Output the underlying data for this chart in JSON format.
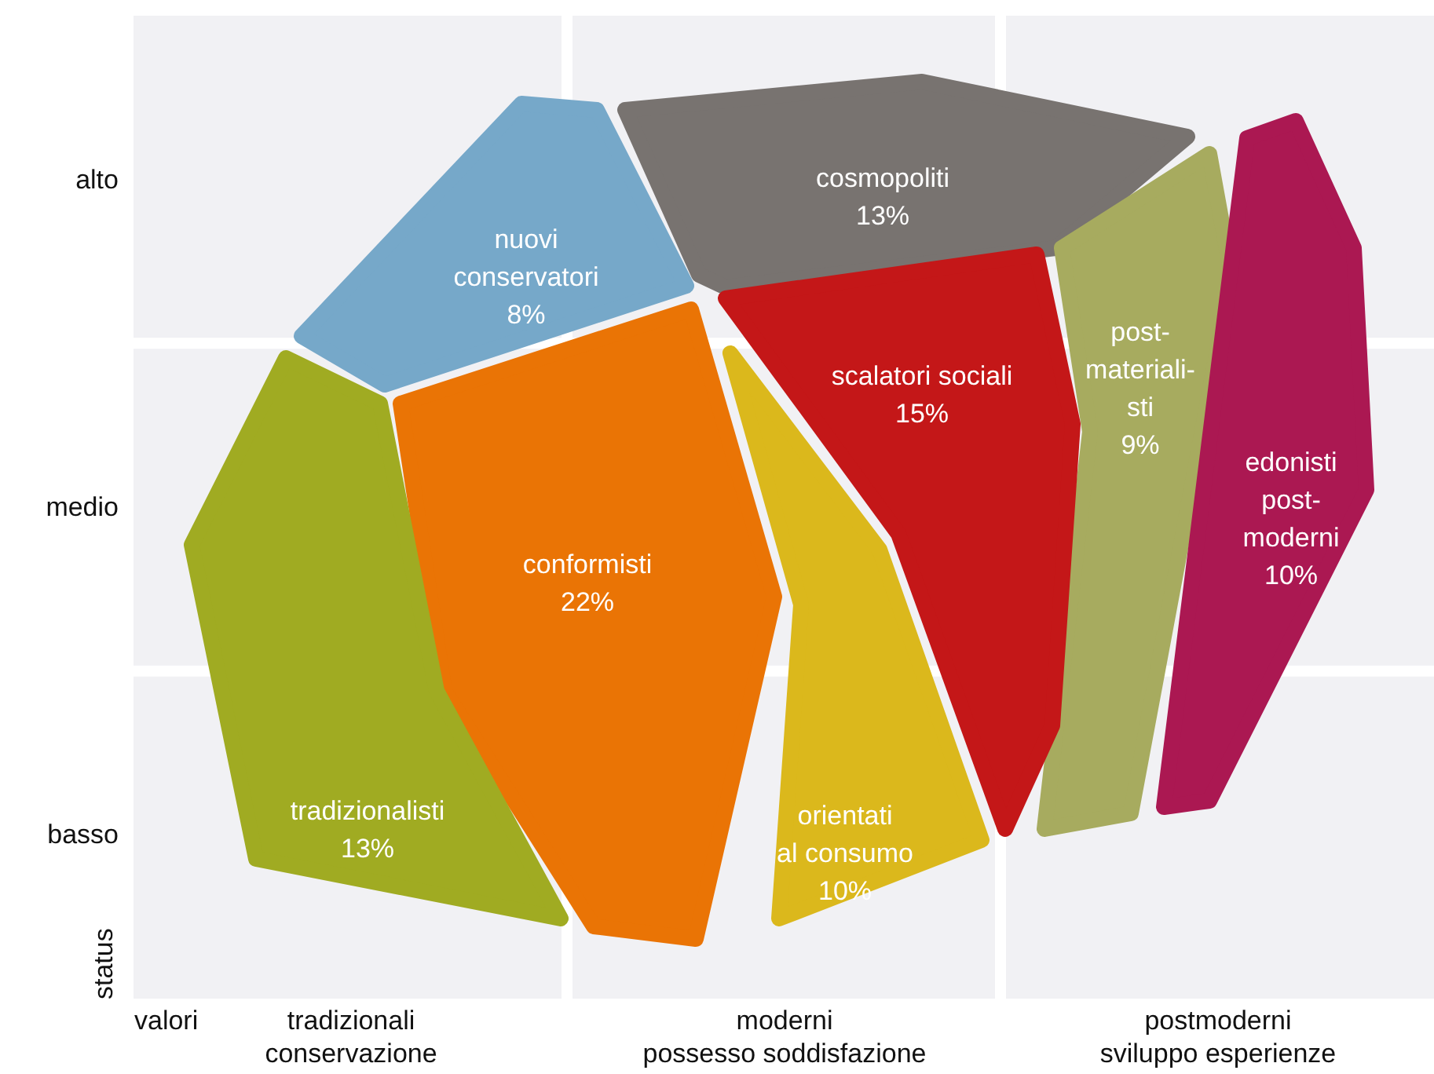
{
  "chart_data": {
    "type": "other",
    "xlabel": "valori",
    "ylabel": "status",
    "categories": [
      "nuovi\nconservatori",
      "cosmopoliti",
      "post-\nmateriali-\nsti",
      "edonisti\npost-\nmoderni",
      "scalatori sociali",
      "orientati\nal consumo",
      "conformisti",
      "tradizionalisti"
    ],
    "values": [
      8,
      13,
      9,
      10,
      15,
      10,
      22,
      13
    ],
    "value_labels": [
      "8%",
      "13%",
      "9%",
      "10%",
      "15%",
      "10%",
      "22%",
      "13%"
    ],
    "colors": [
      "#76a8c9",
      "#787370",
      "#a7ab5f",
      "#ab1852",
      "#c41718",
      "#dbb81c",
      "#ea7405",
      "#a0ab22"
    ],
    "y_categories": [
      "alto",
      "medio",
      "basso"
    ],
    "annotations": [
      "tradizionali\nconservazione",
      "moderni\npossesso   soddisfazione",
      "postmoderni\nsviluppo esperienze"
    ]
  }
}
